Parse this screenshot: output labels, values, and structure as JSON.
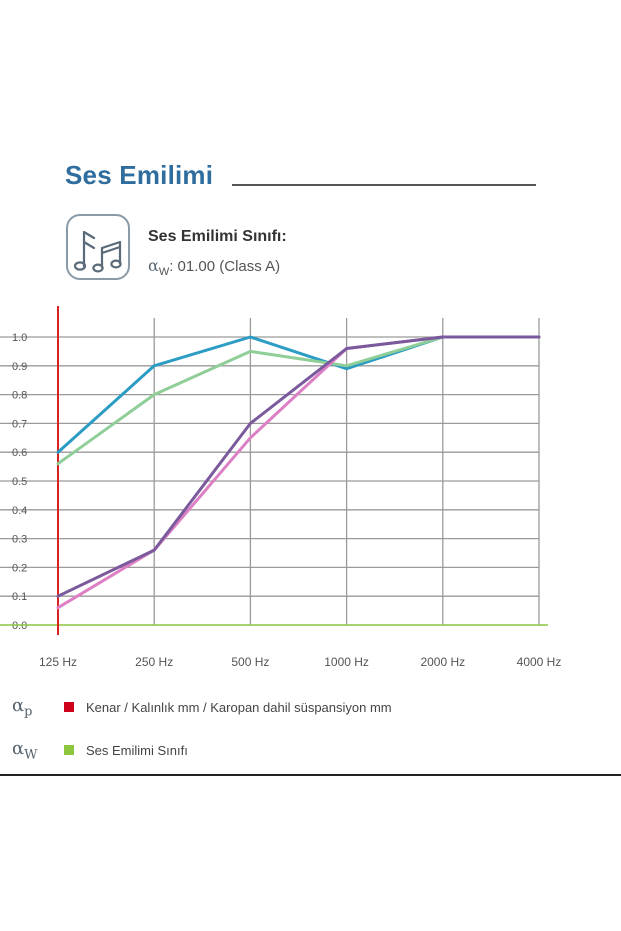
{
  "heading": {
    "title": "Ses Emilimi"
  },
  "classification": {
    "icon": "music-notes-icon",
    "label": "Ses Emilimi Sınıfı:",
    "symbol": "α",
    "symbol_sub": "W",
    "value": ": 01.00 (Class A)"
  },
  "chart_data": {
    "type": "line",
    "x": [
      "125 Hz",
      "250 Hz",
      "500 Hz",
      "1000 Hz",
      "2000 Hz",
      "4000 Hz"
    ],
    "yticks": [
      "0.0",
      "0.1",
      "0.2",
      "0.3",
      "0.4",
      "0.5",
      "0.6",
      "0.7",
      "0.8",
      "0.9",
      "1.0"
    ],
    "ylim": [
      0,
      1.0
    ],
    "grid": true,
    "series": [
      {
        "color": "#2b9cc4",
        "values": [
          0.6,
          0.9,
          1.0,
          0.89,
          1.0,
          1.0
        ]
      },
      {
        "color": "#90ce98",
        "values": [
          0.56,
          0.8,
          0.95,
          0.9,
          1.0,
          1.0
        ]
      },
      {
        "color": "#dd7fc4",
        "values": [
          0.06,
          0.26,
          0.65,
          0.96,
          1.0,
          1.0
        ]
      },
      {
        "color": "#7a5a9c",
        "values": [
          0.1,
          0.26,
          0.7,
          0.96,
          1.0,
          1.0
        ]
      }
    ],
    "vertical_marker_color": "#d92323",
    "baseline_color": "#8cc63f"
  },
  "legend": [
    {
      "symbol": "α",
      "sub": "p",
      "color": "#d0021b",
      "label": "Kenar / Kalınlık mm / Karopan dahil süspansiyon mm"
    },
    {
      "symbol": "α",
      "sub": "W",
      "color": "#8cc63f",
      "label": "Ses Emilimi Sınıfı"
    }
  ]
}
